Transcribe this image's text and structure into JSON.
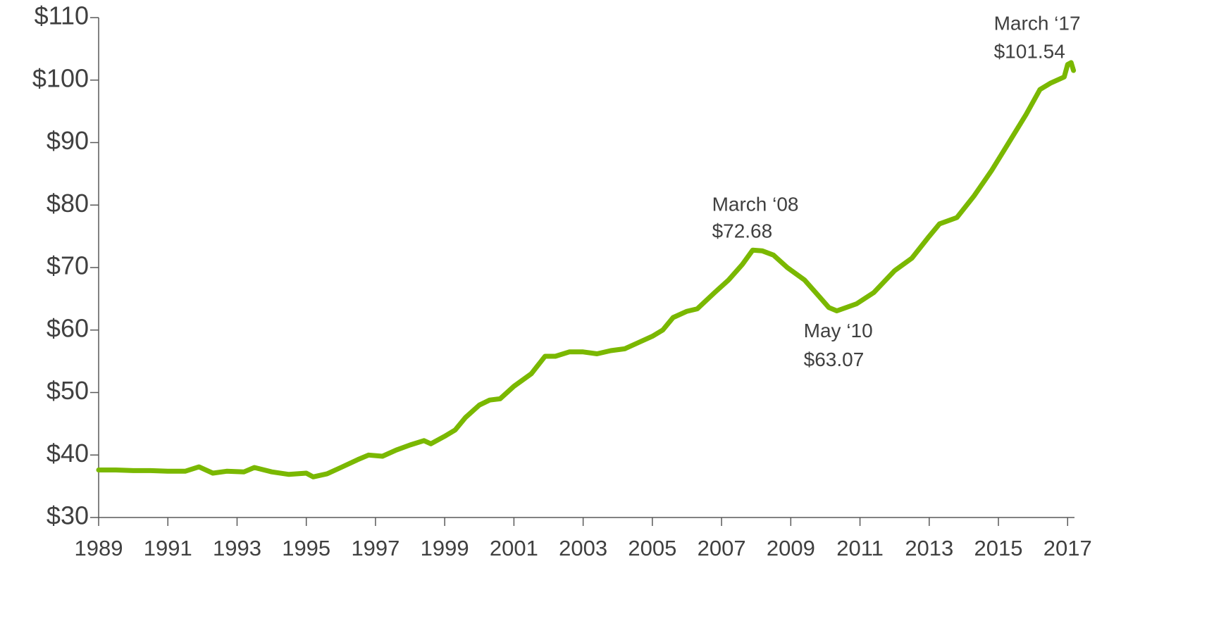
{
  "chart_data": {
    "type": "line",
    "x": [
      1989.0,
      1989.5,
      1990.0,
      1990.5,
      1991.0,
      1991.5,
      1991.9,
      1992.3,
      1992.7,
      1993.2,
      1993.5,
      1994.0,
      1994.5,
      1995.0,
      1995.2,
      1995.6,
      1996.0,
      1996.5,
      1996.8,
      1997.2,
      1997.6,
      1998.0,
      1998.4,
      1998.6,
      1999.0,
      1999.3,
      1999.6,
      2000.0,
      2000.3,
      2000.6,
      2001.0,
      2001.5,
      2001.9,
      2002.2,
      2002.6,
      2003.0,
      2003.4,
      2003.8,
      2004.2,
      2004.6,
      2005.0,
      2005.3,
      2005.6,
      2006.0,
      2006.3,
      2006.8,
      2007.2,
      2007.6,
      2007.9,
      2008.17,
      2008.5,
      2008.9,
      2009.4,
      2009.8,
      2010.1,
      2010.33,
      2010.9,
      2011.4,
      2012.0,
      2012.5,
      2013.0,
      2013.3,
      2013.8,
      2014.3,
      2014.8,
      2015.3,
      2015.8,
      2016.2,
      2016.5,
      2016.9,
      2017.0,
      2017.1,
      2017.17
    ],
    "series": [
      {
        "color": "#7ab800",
        "values": [
          37.6,
          37.6,
          37.5,
          37.5,
          37.4,
          37.4,
          38.1,
          37.1,
          37.4,
          37.3,
          38.0,
          37.3,
          36.9,
          37.1,
          36.5,
          37.0,
          38.0,
          39.3,
          40.0,
          39.8,
          40.8,
          41.6,
          42.3,
          41.8,
          43.0,
          44.0,
          46.0,
          48.0,
          48.8,
          49.0,
          51.0,
          53.0,
          55.8,
          55.8,
          56.5,
          56.5,
          56.2,
          56.7,
          57.0,
          58.0,
          59.0,
          60.0,
          62.0,
          63.0,
          63.4,
          66.0,
          68.0,
          70.5,
          72.8,
          72.68,
          72.0,
          70.0,
          68.0,
          65.5,
          63.6,
          63.07,
          64.2,
          66.0,
          69.5,
          71.5,
          75.0,
          77.0,
          78.0,
          81.5,
          85.5,
          90.0,
          94.5,
          98.5,
          99.5,
          100.5,
          102.5,
          102.8,
          101.54
        ]
      }
    ],
    "xlim": [
      1989,
      2017.3
    ],
    "ylim": [
      30,
      110
    ],
    "xticks": [
      1989,
      1991,
      1993,
      1995,
      1997,
      1999,
      2001,
      2003,
      2005,
      2007,
      2009,
      2011,
      2013,
      2015,
      2017
    ],
    "yticks": [
      {
        "value": 30,
        "label": "$30"
      },
      {
        "value": 40,
        "label": "$40"
      },
      {
        "value": 50,
        "label": "$50"
      },
      {
        "value": 60,
        "label": "$60"
      },
      {
        "value": 70,
        "label": "$70"
      },
      {
        "value": 80,
        "label": "$80"
      },
      {
        "value": 90,
        "label": "$90"
      },
      {
        "value": 100,
        "label": "$100"
      },
      {
        "value": 110,
        "label": "$110"
      }
    ],
    "annotations": [
      {
        "x": 2008.17,
        "y": 72.68,
        "lines": [
          "March ‘08",
          "$72.68"
        ]
      },
      {
        "x": 2010.33,
        "y": 63.07,
        "lines": [
          "May ‘10",
          "$63.07"
        ]
      },
      {
        "x": 2017.17,
        "y": 101.54,
        "lines": [
          "March ‘17",
          "$101.54"
        ]
      }
    ]
  }
}
